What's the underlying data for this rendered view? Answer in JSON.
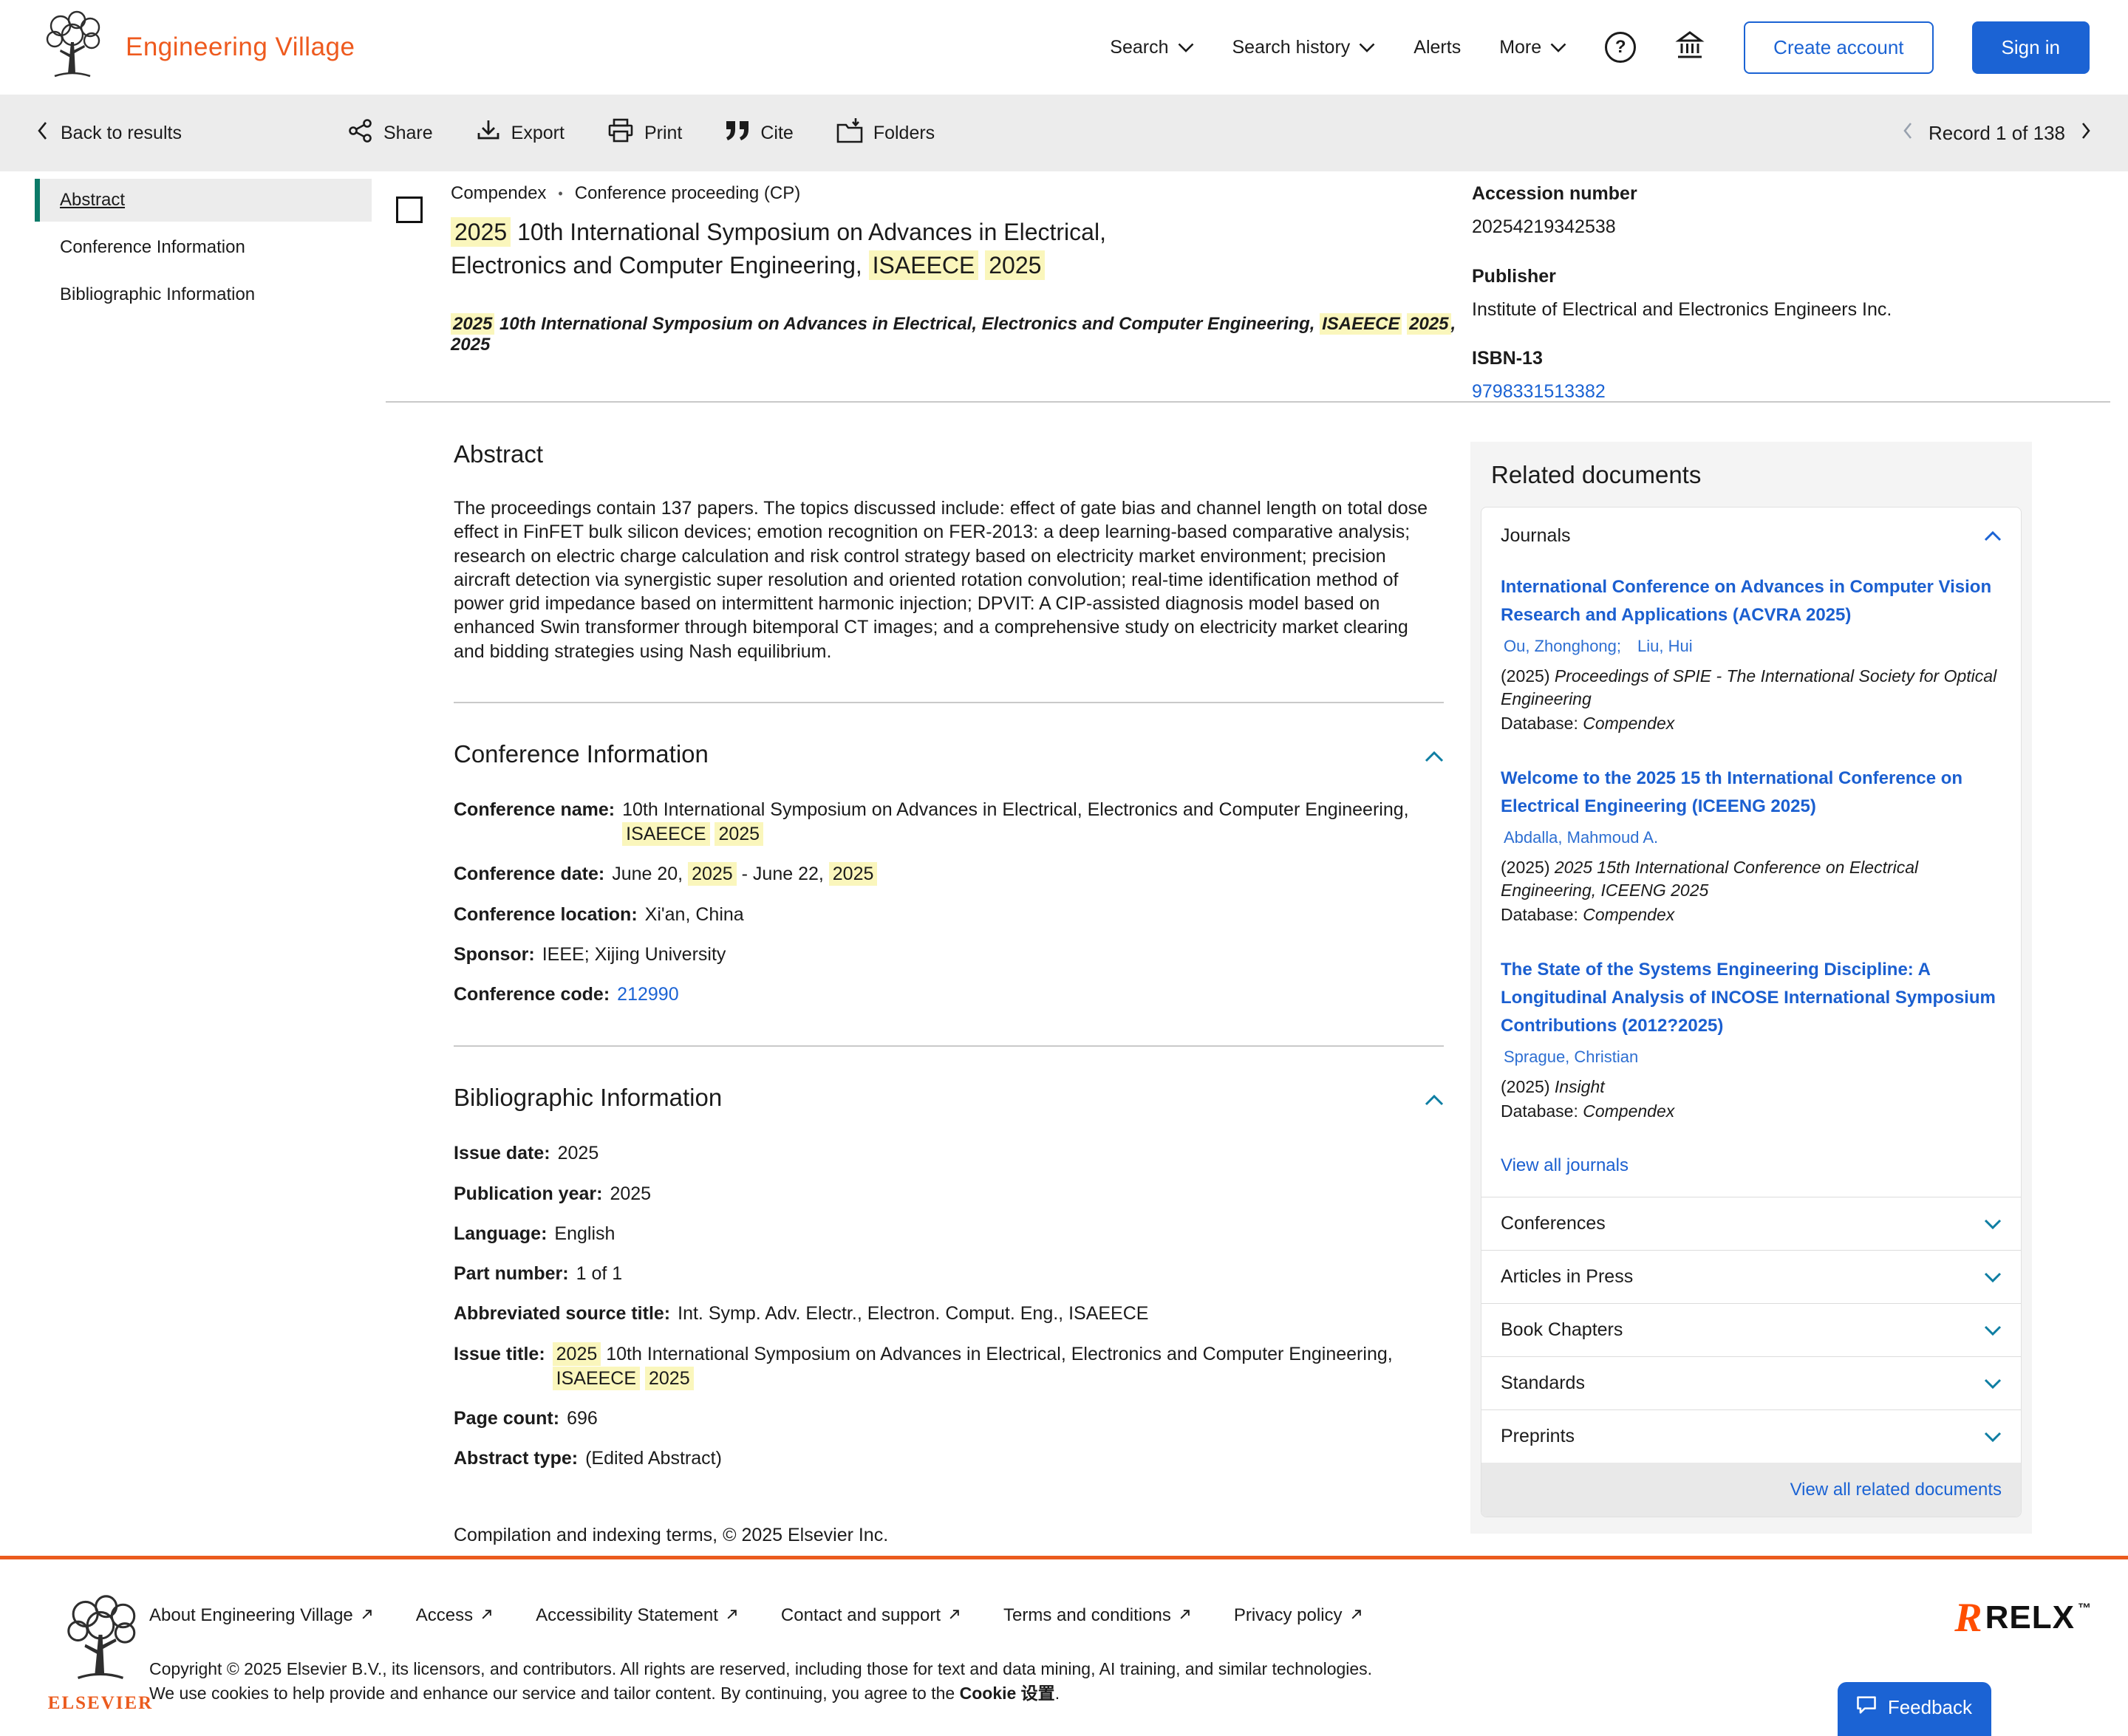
{
  "brand": {
    "name": "Engineering Village",
    "color": "#EE5A1E",
    "accent_blue": "#1B63D4",
    "highlight": "#FAF6BC"
  },
  "header": {
    "nav": [
      {
        "label": "Search",
        "dropdown": true
      },
      {
        "label": "Search history",
        "dropdown": true
      },
      {
        "label": "Alerts",
        "dropdown": false
      },
      {
        "label": "More",
        "dropdown": true
      }
    ],
    "create_account_label": "Create account",
    "sign_in_label": "Sign in"
  },
  "toolbar": {
    "back_label": "Back to results",
    "actions": [
      {
        "icon": "share-icon",
        "label": "Share"
      },
      {
        "icon": "export-icon",
        "label": "Export"
      },
      {
        "icon": "print-icon",
        "label": "Print"
      },
      {
        "icon": "cite-icon",
        "label": "Cite"
      },
      {
        "icon": "folders-icon",
        "label": "Folders"
      }
    ],
    "record_nav_label": "Record 1 of 138"
  },
  "sidebar": {
    "items": [
      {
        "label": "Abstract",
        "active": true
      },
      {
        "label": "Conference Information",
        "active": false
      },
      {
        "label": "Bibliographic Information",
        "active": false
      }
    ]
  },
  "record": {
    "breadcrumb": {
      "database": "Compendex",
      "separator": "•",
      "doc_type": "Conference proceeding (CP)"
    },
    "title_segments": [
      {
        "t": "2025",
        "h": true
      },
      {
        "t": " 10th International Symposium on Advances in Electrical, Electronics and Computer Engineering, "
      },
      {
        "t": "ISAEECE",
        "h": true
      },
      {
        "t": " "
      },
      {
        "t": "2025",
        "h": true
      }
    ],
    "source_segments": [
      {
        "t": "2025",
        "h": true
      },
      {
        "t": " 10th International Symposium on Advances in Electrical, Electronics and Computer Engineering, "
      },
      {
        "t": "ISAEECE",
        "h": true
      },
      {
        "t": " "
      },
      {
        "t": "2025",
        "h": true
      },
      {
        "t": ", 2025"
      }
    ],
    "meta": [
      {
        "label": "Accession number",
        "value": "20254219342538"
      },
      {
        "label": "Publisher",
        "value": "Institute of Electrical and Electronics Engineers Inc."
      },
      {
        "label": "ISBN-13",
        "value": "9798331513382"
      }
    ]
  },
  "abstract": {
    "heading": "Abstract",
    "text": "The proceedings contain 137 papers. The topics discussed include: effect of gate bias and channel length on total dose effect in FinFET bulk silicon devices; emotion recognition on FER-2013: a deep learning-based comparative analysis; research on electric charge calculation and risk control strategy based on electricity market environment; precision aircraft detection via synergistic super resolution and oriented rotation convolution; real-time identification method of power grid impedance based on intermittent harmonic injection; DPVIT: A CIP-assisted diagnosis model based on enhanced Swin transformer through bitemporal CT images; and a comprehensive study on electricity market clearing and bidding strategies using Nash equilibrium."
  },
  "conference_info": {
    "heading": "Conference Information",
    "fields": [
      {
        "label": "Conference name:",
        "segments": [
          {
            "t": "10th International Symposium on Advances in Electrical, Electronics and Computer Engineering, "
          },
          {
            "t": "ISAEECE",
            "h": true
          },
          {
            "t": " "
          },
          {
            "t": "2025",
            "h": true
          }
        ]
      },
      {
        "label": "Conference date:",
        "segments": [
          {
            "t": "June 20, "
          },
          {
            "t": "2025",
            "h": true
          },
          {
            "t": " - June 22, "
          },
          {
            "t": "2025",
            "h": true
          }
        ]
      },
      {
        "label": "Conference location:",
        "segments": [
          {
            "t": "Xi'an, China"
          }
        ]
      },
      {
        "label": "Sponsor:",
        "segments": [
          {
            "t": "IEEE; Xijing University"
          }
        ]
      },
      {
        "label": "Conference code:",
        "segments": [
          {
            "t": "212990",
            "link": true
          }
        ]
      }
    ]
  },
  "biblio": {
    "heading": "Bibliographic Information",
    "fields": [
      {
        "label": "Issue date:",
        "segments": [
          {
            "t": "2025"
          }
        ]
      },
      {
        "label": "Publication year:",
        "segments": [
          {
            "t": "2025"
          }
        ]
      },
      {
        "label": "Language:",
        "segments": [
          {
            "t": "English"
          }
        ]
      },
      {
        "label": "Part number:",
        "segments": [
          {
            "t": "1 of 1"
          }
        ]
      },
      {
        "label": "Abbreviated source title:",
        "segments": [
          {
            "t": "Int. Symp. Adv. Electr., Electron. Comput. Eng., ISAEECE"
          }
        ]
      },
      {
        "label": "Issue title:",
        "segments": [
          {
            "t": "2025",
            "h": true
          },
          {
            "t": " 10th International Symposium on Advances in Electrical, Electronics and Computer Engineering, "
          },
          {
            "t": "ISAEECE",
            "h": true
          },
          {
            "t": " "
          },
          {
            "t": "2025",
            "h": true
          }
        ]
      },
      {
        "label": "Page count:",
        "segments": [
          {
            "t": "696"
          }
        ]
      },
      {
        "label": "Abstract type:",
        "segments": [
          {
            "t": "(Edited Abstract)"
          }
        ]
      }
    ]
  },
  "compilation_note": "Compilation and indexing terms, © 2025 Elsevier Inc.",
  "related": {
    "heading": "Related documents",
    "journals_label": "Journals",
    "items": [
      {
        "title": "International Conference on Advances in Computer Vision Research and Applications (ACVRA 2025)",
        "authors": "Ou, Zhonghong; Liu, Hui",
        "year": "(2025)",
        "source": "Proceedings of SPIE - The International Society for Optical Engineering",
        "database_label": "Database:",
        "database": "Compendex"
      },
      {
        "title": "Welcome to the 2025 15 th International Conference on Electrical Engineering (ICEENG 2025)",
        "authors": "Abdalla, Mahmoud A.",
        "year": "(2025)",
        "source": "2025 15th International Conference on Electrical Engineering, ICEENG 2025",
        "database_label": "Database:",
        "database": "Compendex"
      },
      {
        "title": "The State of the Systems Engineering Discipline: A Longitudinal Analysis of INCOSE International Symposium Contributions (2012?2025)",
        "authors": "Sprague, Christian",
        "year": "(2025)",
        "source": "Insight",
        "database_label": "Database:",
        "database": "Compendex"
      }
    ],
    "view_all_journals_label": "View all journals",
    "accordions": [
      {
        "label": "Conferences"
      },
      {
        "label": "Articles in Press"
      },
      {
        "label": "Book Chapters"
      },
      {
        "label": "Standards"
      },
      {
        "label": "Preprints"
      }
    ],
    "view_all_label": "View all related documents"
  },
  "footer": {
    "links": [
      {
        "label": "About Engineering Village"
      },
      {
        "label": "Access"
      },
      {
        "label": "Accessibility Statement"
      },
      {
        "label": "Contact and support"
      },
      {
        "label": "Terms and conditions"
      },
      {
        "label": "Privacy policy"
      }
    ],
    "copyright_line1": "Copyright © 2025 Elsevier B.V., its licensors, and contributors. All rights are reserved, including those for text and data mining, AI training, and similar technologies.",
    "copyright_line2_prefix": "We use cookies to help provide and enhance our service and tailor content. By continuing, you agree to the ",
    "cookie_link_label": "Cookie 设置",
    "copyright_line2_suffix": ".",
    "elsevier_wordmark": "ELSEVIER",
    "relx_wordmark": "RELX",
    "relx_tm": "™"
  },
  "feedback": {
    "label": "Feedback"
  },
  "icons": {
    "share": "share-network-icon",
    "export": "download-tray-icon",
    "print": "printer-icon",
    "cite": "double-quote-icon",
    "folders": "folder-arrow-icon",
    "help": "question-circle-icon",
    "institution": "bank-columns-icon",
    "back": "chevron-left-icon",
    "dropdown": "chevron-down-icon",
    "collapse": "chevron-up-icon",
    "expand": "chevron-down-icon",
    "external": "arrow-up-right-icon",
    "feedback": "chat-bubble-icon"
  }
}
